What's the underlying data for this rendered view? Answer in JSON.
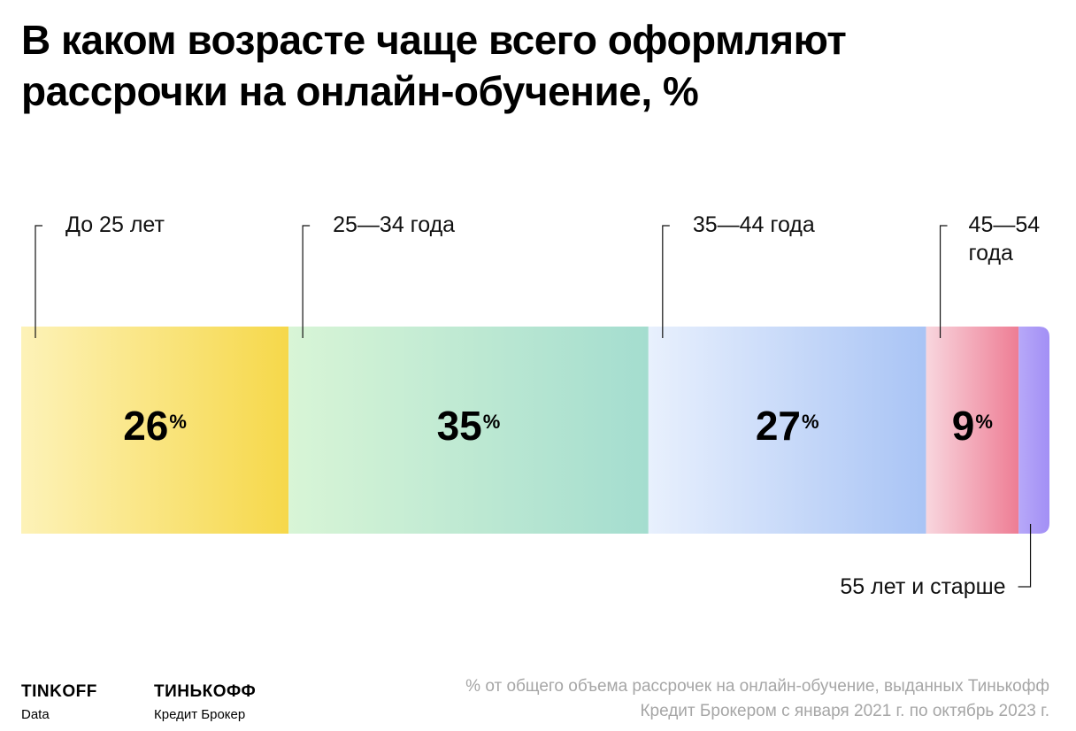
{
  "title": "В каком возрасте чаще всего оформляют рассрочки на онлайн-обучение, %",
  "chart_data": {
    "type": "bar",
    "orientation": "horizontal-stacked",
    "unit": "%",
    "segments": [
      {
        "label": "До 25 лет",
        "value": 26,
        "display": "26",
        "color_from": "#fdf2b8",
        "color_to": "#f6d84a"
      },
      {
        "label": "25—34 года",
        "value": 35,
        "display": "35",
        "color_from": "#d8f5d6",
        "color_to": "#a4ddcf"
      },
      {
        "label": "35—44 года",
        "value": 27,
        "display": "27",
        "color_from": "#e8f0fd",
        "color_to": "#a9c4f5"
      },
      {
        "label": "45—54 года",
        "value": 9,
        "display": "9",
        "color_from": "#f8d6de",
        "color_to": "#ee7d94"
      },
      {
        "label": "55 лет и старше",
        "value": 3,
        "display": "",
        "color_from": "#b7a8f8",
        "color_to": "#a28ff5"
      }
    ]
  },
  "footnote": "% от общего объема рассрочек на онлайн-обучение, выданных Тинькофф Кредит Брокером с января 2021 г. по октябрь 2023 г.",
  "logos": [
    {
      "main": "TINKOFF",
      "sub": "Data"
    },
    {
      "main": "ТИНЬКОФФ",
      "sub": "Кредит Брокер"
    }
  ]
}
